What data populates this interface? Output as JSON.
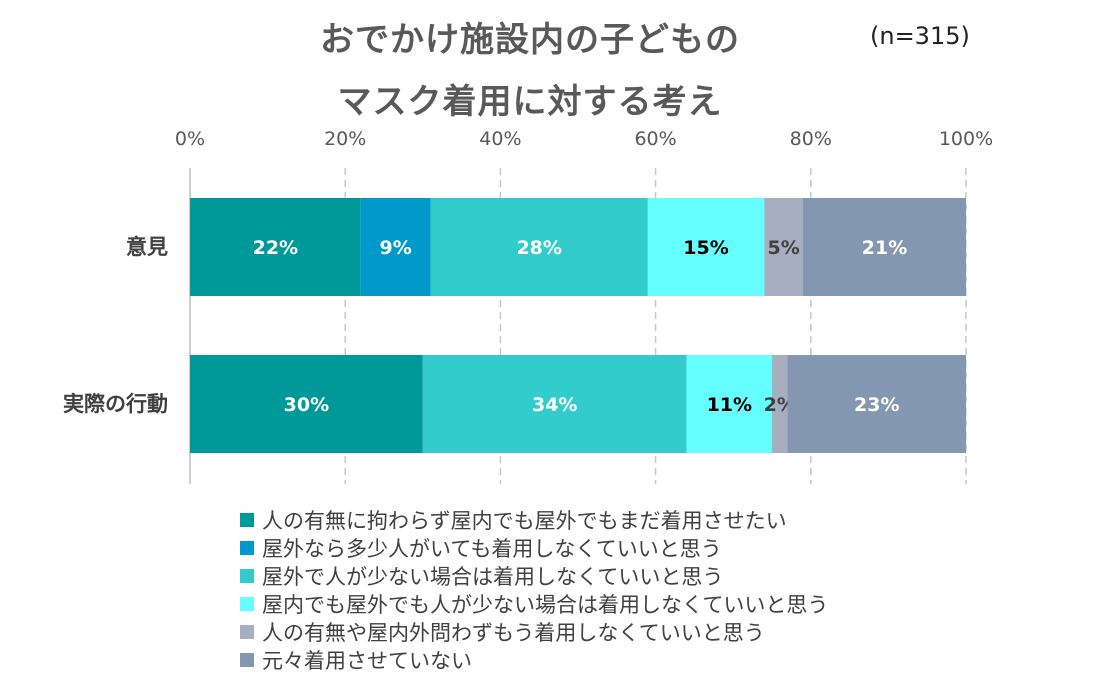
{
  "header": {
    "title_line1": "おでかけ施設内の子どもの",
    "title_line2": "マスク着用に対する考え",
    "sample_size": "(n=315)"
  },
  "colors": [
    "#009999",
    "#0099CC",
    "#33CCCC",
    "#66FFFF",
    "#A6AEC0",
    "#8497B0"
  ],
  "chart_data": {
    "type": "bar",
    "orientation": "horizontal",
    "stacked": "percent",
    "title": "おでかけ施設内の子どものマスク着用に対する考え",
    "categories": [
      "意見",
      "実際の行動"
    ],
    "xlim": [
      0,
      100
    ],
    "x_ticks": [
      "0%",
      "20%",
      "40%",
      "60%",
      "80%",
      "100%"
    ],
    "grid": "vertical-dashed",
    "legend_position": "bottom",
    "series": [
      {
        "name": "人の有無に拘わらず屋内でも屋外でもまだ着用させたい",
        "values": [
          22,
          30
        ],
        "labels": [
          "22%",
          "30%"
        ],
        "color": "#009999",
        "label_color": "#ffffff"
      },
      {
        "name": "屋外なら多少人がいても着用しなくていいと思う",
        "values": [
          9,
          0
        ],
        "labels": [
          "9%",
          ""
        ],
        "color": "#0099CC",
        "label_color": "#ffffff"
      },
      {
        "name": "屋外で人が少ない場合は着用しなくていいと思う",
        "values": [
          28,
          34
        ],
        "labels": [
          "28%",
          "34%"
        ],
        "color": "#33CCCC",
        "label_color": "#ffffff"
      },
      {
        "name": "屋内でも屋外でも人が少ない場合は着用しなくていいと思う",
        "values": [
          15,
          11
        ],
        "labels": [
          "15%",
          "11%"
        ],
        "color": "#66FFFF",
        "label_color": "#000000"
      },
      {
        "name": "人の有無や屋内外問わずもう着用しなくていいと思う",
        "values": [
          5,
          2
        ],
        "labels": [
          "5%",
          "2%"
        ],
        "color": "#A6AEC0",
        "label_color": "#404040"
      },
      {
        "name": "元々着用させていない",
        "values": [
          21,
          23
        ],
        "labels": [
          "21%",
          "23%"
        ],
        "color": "#8497B0",
        "label_color": "#ffffff"
      }
    ]
  }
}
